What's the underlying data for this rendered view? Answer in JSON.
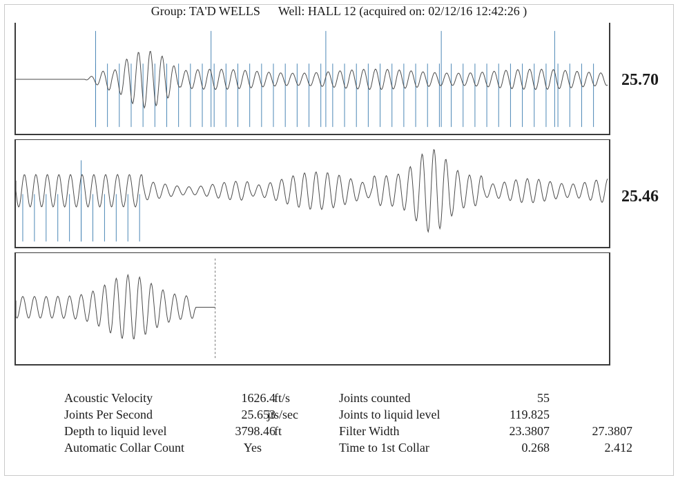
{
  "header": {
    "group": "Group: TA'D WELLS",
    "well": "Well: HALL 12 (acquired on: 02/12/16 12:42:26 )"
  },
  "traces": {
    "panel1_rate": "25.70",
    "panel2_rate": "25.46"
  },
  "stats_left": [
    {
      "label": "Acoustic Velocity",
      "value": "1626.4",
      "unit": "ft/s"
    },
    {
      "label": "Joints Per Second",
      "value": "25.653",
      "unit": "jts/sec"
    },
    {
      "label": "Depth to liquid level",
      "value": "3798.46",
      "unit": "ft"
    },
    {
      "label": "Automatic Collar Count",
      "value": "Yes",
      "unit": ""
    }
  ],
  "stats_right": [
    {
      "label": "Joints counted",
      "value": "55",
      "value2": ""
    },
    {
      "label": "Joints to liquid level",
      "value": "119.825",
      "value2": ""
    },
    {
      "label": "Filter Width",
      "value": "23.3807",
      "value2": "27.3807"
    },
    {
      "label": "Time to 1st Collar",
      "value": "0.268",
      "value2": "2.412"
    }
  ],
  "colors": {
    "waveform": "#4a4a4a",
    "collar_marker": "#4a86b5",
    "border": "#3a3a3a"
  }
}
